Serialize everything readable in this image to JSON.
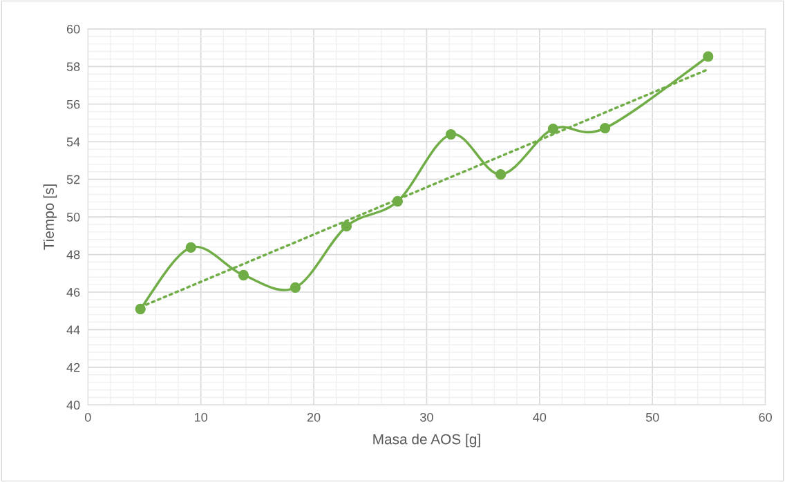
{
  "chart_data": {
    "type": "line",
    "xlabel": "Masa de AOS [g]",
    "ylabel": "Tiempo [s]",
    "xlim": [
      0,
      60
    ],
    "xticks": [
      0,
      10,
      20,
      30,
      40,
      50,
      60
    ],
    "ylim": [
      40,
      60
    ],
    "yticks": [
      40,
      42,
      44,
      46,
      48,
      50,
      52,
      54,
      56,
      58,
      60
    ],
    "grid": true,
    "marker": "circle",
    "line_style": "solid",
    "series": [
      {
        "color": "#70ad47",
        "x": [
          4.65,
          9.12,
          13.78,
          18.37,
          22.9,
          27.43,
          32.15,
          36.56,
          41.2,
          45.8,
          54.93
        ],
        "values": [
          45.1,
          48.37,
          46.9,
          46.24,
          49.5,
          50.83,
          54.39,
          52.26,
          54.68,
          54.72,
          58.53
        ]
      },
      {
        "type": "line",
        "color": "#70ad47",
        "marker": "none",
        "line_style": "dotted",
        "x": [
          4.65,
          54.93
        ],
        "values": [
          45.2,
          57.85
        ]
      }
    ]
  }
}
